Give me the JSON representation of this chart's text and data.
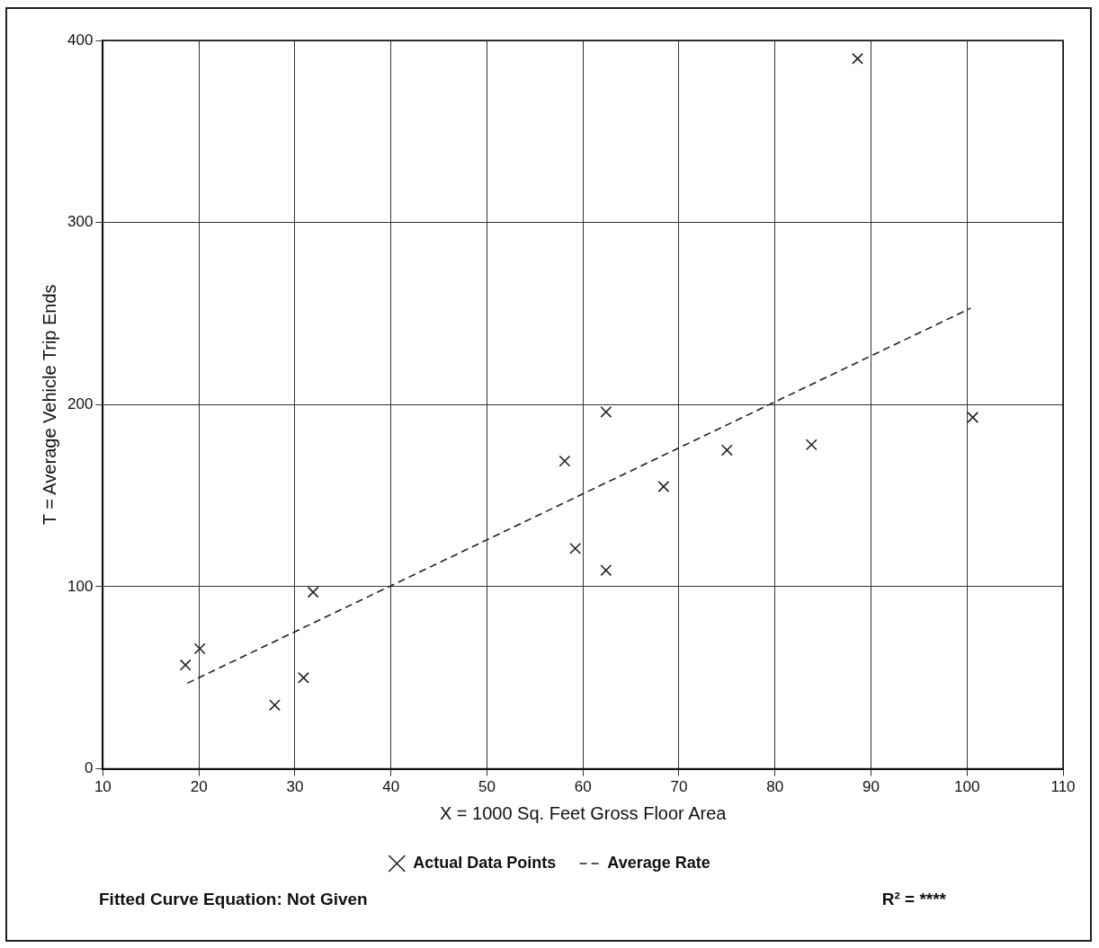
{
  "chart_data": {
    "type": "scatter",
    "xlabel": "X = 1000 Sq. Feet Gross Floor Area",
    "ylabel": "T = Average Vehicle Trip Ends",
    "xlim": [
      10,
      110
    ],
    "xticks": [
      10,
      20,
      30,
      40,
      50,
      60,
      70,
      80,
      90,
      100,
      110
    ],
    "ylim": [
      0,
      400
    ],
    "yticks": [
      0,
      100,
      200,
      300,
      400
    ],
    "grid": true,
    "legend": "bottom",
    "marker": "cross",
    "series": [
      {
        "name": "Actual Data Points",
        "color": "#222222",
        "x": [
          18.6,
          20.1,
          27.9,
          30.9,
          31.9,
          58.1,
          59.2,
          62.4,
          62.4,
          68.4,
          75.0,
          83.8,
          88.6,
          100.6
        ],
        "values": [
          57,
          66,
          35,
          50,
          97,
          169,
          121,
          196,
          109,
          155,
          175,
          178,
          390,
          193
        ]
      },
      {
        "name": "Average Rate",
        "type": "line",
        "line_style": "dashed",
        "marker": "none",
        "color": "#222222",
        "x": [
          18.8,
          100.4
        ],
        "values": [
          47,
          253
        ]
      }
    ],
    "annotations": [
      "Fitted Curve Equation:  Not Given",
      "R² = ****"
    ]
  }
}
